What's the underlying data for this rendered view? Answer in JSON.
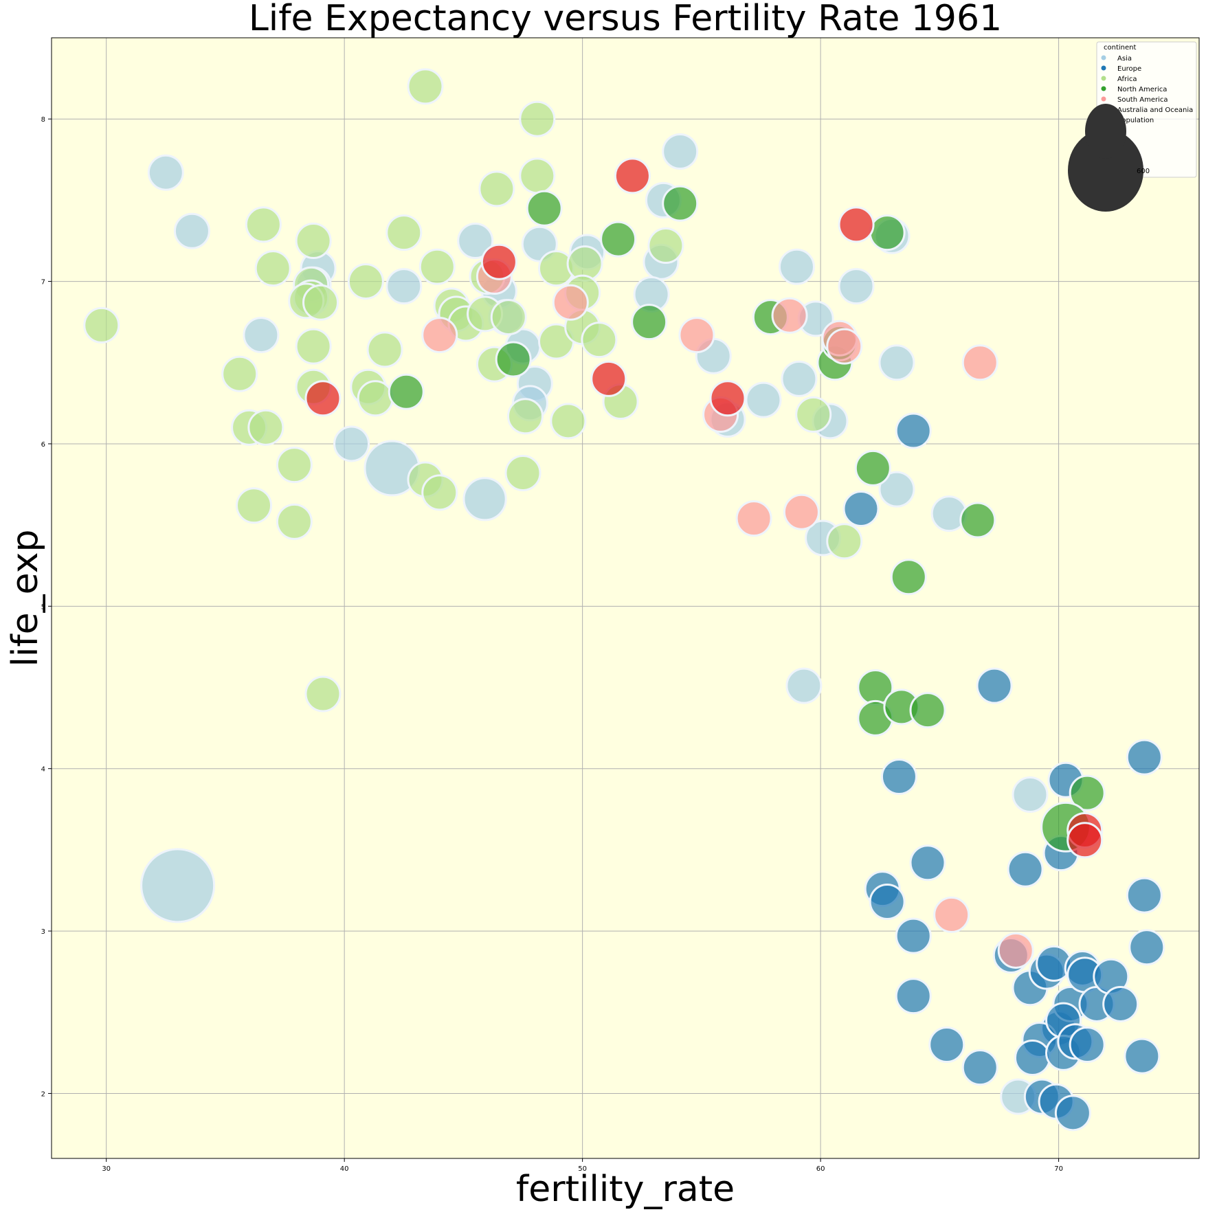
{
  "chart_data": {
    "type": "scatter",
    "title": "Life Expectancy versus Fertility Rate 1961",
    "xlabel": "fertility_rate",
    "ylabel": "life_exp",
    "xlim": [
      27.7,
      75.9
    ],
    "ylim": [
      1.6,
      8.5
    ],
    "xticks": [
      "30",
      "40",
      "50",
      "60",
      "70"
    ],
    "yticks": [
      "2",
      "3",
      "4",
      "5",
      "6",
      "7",
      "8"
    ],
    "grid": true,
    "background_color": "#ffffe0",
    "legend": {
      "placement": "top-right",
      "title": "continent",
      "size_title": "population",
      "size_value": "600",
      "size_color": "#333333"
    },
    "series": [
      {
        "name": "Asia",
        "color": "#a6cee3",
        "points": [
          [
            32.5,
            7.67
          ],
          [
            33.6,
            7.31
          ],
          [
            36.5,
            6.67
          ],
          [
            38.9,
            7.08
          ],
          [
            38.7,
            6.98
          ],
          [
            40.3,
            6.0
          ],
          [
            42.0,
            5.85
          ],
          [
            42.5,
            6.97
          ],
          [
            45.5,
            7.25
          ],
          [
            46.5,
            6.94
          ],
          [
            46.8,
            6.78
          ],
          [
            47.5,
            6.6
          ],
          [
            48.2,
            7.23
          ],
          [
            48.0,
            6.37
          ],
          [
            47.8,
            6.25
          ],
          [
            45.9,
            5.66
          ],
          [
            50.2,
            7.18
          ],
          [
            53.3,
            7.12
          ],
          [
            54.1,
            7.8
          ],
          [
            53.4,
            7.5
          ],
          [
            52.9,
            6.92
          ],
          [
            55.5,
            6.54
          ],
          [
            56.1,
            6.15
          ],
          [
            57.6,
            6.27
          ],
          [
            59.0,
            7.09
          ],
          [
            59.8,
            6.77
          ],
          [
            59.1,
            6.4
          ],
          [
            60.4,
            6.14
          ],
          [
            61.5,
            6.97
          ],
          [
            63.2,
            6.5
          ],
          [
            63.0,
            7.28
          ],
          [
            63.2,
            5.72
          ],
          [
            65.4,
            5.57
          ],
          [
            60.1,
            5.42
          ],
          [
            59.3,
            4.51
          ],
          [
            68.8,
            3.84
          ],
          [
            68.3,
            1.98
          ],
          [
            33.0,
            3.28
          ]
        ],
        "sizes": [
          2,
          2,
          2,
          2,
          2,
          2,
          5,
          2,
          2,
          2,
          2,
          2,
          2,
          2,
          2,
          3,
          2,
          2,
          2,
          2,
          2,
          2,
          2,
          2,
          2,
          2,
          2,
          2,
          2,
          2,
          2,
          2,
          2,
          2,
          2,
          2,
          2,
          9
        ]
      },
      {
        "name": "Europe",
        "color": "#1f78b4",
        "points": [
          [
            63.9,
            6.08
          ],
          [
            61.7,
            5.6
          ],
          [
            67.3,
            4.51
          ],
          [
            63.3,
            3.95
          ],
          [
            64.5,
            3.42
          ],
          [
            62.6,
            3.26
          ],
          [
            62.8,
            3.18
          ],
          [
            63.9,
            2.97
          ],
          [
            63.9,
            2.6
          ],
          [
            65.3,
            2.3
          ],
          [
            66.7,
            2.16
          ],
          [
            68.6,
            3.38
          ],
          [
            68.0,
            2.85
          ],
          [
            68.8,
            2.65
          ],
          [
            69.5,
            2.75
          ],
          [
            69.8,
            2.8
          ],
          [
            70.0,
            2.4
          ],
          [
            69.2,
            2.33
          ],
          [
            68.9,
            2.22
          ],
          [
            70.1,
            3.48
          ],
          [
            70.3,
            3.93
          ],
          [
            70.5,
            2.55
          ],
          [
            70.2,
            2.45
          ],
          [
            70.2,
            2.25
          ],
          [
            70.7,
            2.32
          ],
          [
            71.0,
            2.77
          ],
          [
            71.1,
            2.73
          ],
          [
            71.2,
            2.3
          ],
          [
            71.6,
            2.55
          ],
          [
            72.2,
            2.72
          ],
          [
            72.6,
            2.55
          ],
          [
            73.6,
            4.07
          ],
          [
            73.6,
            3.22
          ],
          [
            73.7,
            2.9
          ],
          [
            73.5,
            2.23
          ],
          [
            69.3,
            1.98
          ],
          [
            69.9,
            1.95
          ],
          [
            70.6,
            1.88
          ]
        ],
        "sizes": [
          2,
          2,
          2,
          2,
          2,
          2,
          2,
          2,
          2,
          2,
          2,
          2,
          2,
          2,
          2,
          2,
          2,
          2,
          2,
          2,
          2,
          2,
          2,
          2,
          2,
          2,
          2,
          2,
          2,
          2,
          2,
          2,
          2,
          2,
          2,
          2,
          2,
          2
        ]
      },
      {
        "name": "Africa",
        "color": "#b2df8a",
        "points": [
          [
            29.8,
            6.73
          ],
          [
            35.6,
            6.43
          ],
          [
            36.6,
            7.35
          ],
          [
            37.0,
            7.08
          ],
          [
            36.0,
            6.1
          ],
          [
            36.7,
            6.1
          ],
          [
            36.2,
            5.62
          ],
          [
            37.9,
            5.87
          ],
          [
            37.9,
            5.52
          ],
          [
            38.7,
            7.25
          ],
          [
            38.6,
            6.98
          ],
          [
            38.6,
            6.9
          ],
          [
            38.4,
            6.88
          ],
          [
            39.0,
            6.87
          ],
          [
            38.7,
            6.6
          ],
          [
            38.7,
            6.35
          ],
          [
            39.1,
            4.46
          ],
          [
            40.9,
            7.0
          ],
          [
            41.7,
            6.58
          ],
          [
            41.0,
            6.35
          ],
          [
            41.3,
            6.28
          ],
          [
            42.5,
            7.3
          ],
          [
            43.4,
            8.2
          ],
          [
            43.9,
            7.09
          ],
          [
            43.4,
            5.78
          ],
          [
            44.0,
            5.7
          ],
          [
            44.5,
            6.85
          ],
          [
            44.7,
            6.8
          ],
          [
            45.1,
            6.74
          ],
          [
            46.0,
            7.03
          ],
          [
            46.4,
            7.57
          ],
          [
            45.9,
            6.8
          ],
          [
            46.3,
            6.49
          ],
          [
            46.9,
            6.78
          ],
          [
            47.6,
            6.17
          ],
          [
            47.5,
            5.82
          ],
          [
            48.1,
            8.0
          ],
          [
            48.1,
            7.65
          ],
          [
            48.9,
            7.08
          ],
          [
            48.9,
            6.63
          ],
          [
            50.1,
            7.11
          ],
          [
            50.0,
            6.93
          ],
          [
            50.0,
            6.72
          ],
          [
            50.7,
            6.64
          ],
          [
            49.4,
            6.14
          ],
          [
            51.6,
            6.26
          ],
          [
            53.5,
            7.22
          ],
          [
            59.7,
            6.18
          ],
          [
            61.0,
            5.4
          ]
        ],
        "sizes": [
          2,
          2,
          2,
          2,
          2,
          2,
          2,
          2,
          2,
          2,
          2,
          2,
          2,
          2,
          2,
          2,
          2,
          2,
          2,
          2,
          2,
          2,
          2,
          2,
          2,
          2,
          2,
          2,
          2,
          2,
          2,
          2,
          2,
          2,
          2,
          2,
          2,
          2,
          2,
          2,
          2,
          2,
          2,
          2,
          2,
          2,
          2,
          2,
          2
        ]
      },
      {
        "name": "North America",
        "color": "#33a02c",
        "points": [
          [
            42.6,
            6.32
          ],
          [
            47.1,
            6.52
          ],
          [
            48.4,
            7.45
          ],
          [
            51.5,
            7.26
          ],
          [
            52.8,
            6.75
          ],
          [
            54.1,
            7.48
          ],
          [
            57.9,
            6.78
          ],
          [
            60.6,
            6.5
          ],
          [
            60.8,
            6.62
          ],
          [
            62.2,
            5.85
          ],
          [
            62.8,
            7.3
          ],
          [
            66.6,
            5.53
          ],
          [
            63.7,
            5.18
          ],
          [
            62.3,
            4.5
          ],
          [
            62.3,
            4.31
          ],
          [
            63.4,
            4.38
          ],
          [
            64.5,
            4.36
          ],
          [
            71.2,
            3.85
          ],
          [
            70.3,
            3.64
          ]
        ],
        "sizes": [
          2,
          2,
          2,
          2,
          2,
          2,
          2,
          2,
          2,
          2,
          2,
          2,
          2,
          2,
          2,
          2,
          2,
          2,
          4
        ]
      },
      {
        "name": "South America",
        "color": "#fb9a99",
        "points": [
          [
            44.0,
            6.67
          ],
          [
            46.3,
            7.03
          ],
          [
            49.5,
            6.87
          ],
          [
            54.8,
            6.67
          ],
          [
            55.8,
            6.18
          ],
          [
            58.7,
            6.79
          ],
          [
            57.2,
            5.54
          ],
          [
            59.2,
            5.58
          ],
          [
            60.8,
            6.65
          ],
          [
            61.0,
            6.6
          ],
          [
            66.7,
            6.5
          ],
          [
            65.5,
            3.1
          ],
          [
            68.2,
            2.88
          ]
        ],
        "sizes": [
          2,
          2,
          2,
          2,
          2,
          2,
          2,
          2,
          2,
          2,
          2,
          2,
          2
        ]
      },
      {
        "name": "Australia and Oceania",
        "color": "#e31a1c",
        "points": [
          [
            39.1,
            6.28
          ],
          [
            46.5,
            7.12
          ],
          [
            51.1,
            6.4
          ],
          [
            52.1,
            7.65
          ],
          [
            56.1,
            6.28
          ],
          [
            61.5,
            7.35
          ],
          [
            71.1,
            3.62
          ],
          [
            71.1,
            3.56
          ]
        ],
        "sizes": [
          2,
          2,
          2,
          2,
          2,
          2,
          2,
          2
        ]
      }
    ]
  }
}
